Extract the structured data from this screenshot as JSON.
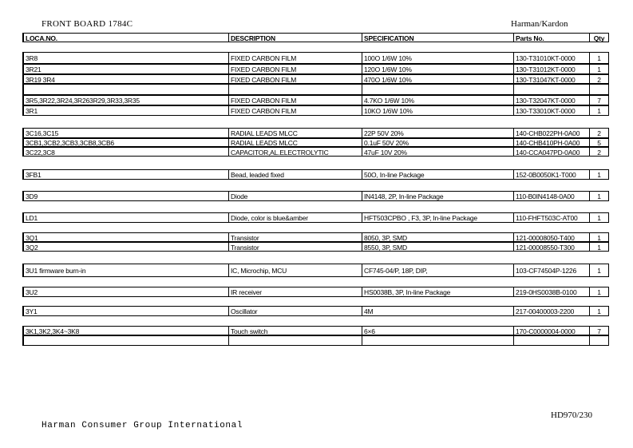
{
  "header": {
    "title": "FRONT BOARD 1784C",
    "brand": "Harman/Kardon"
  },
  "table": {
    "columns": [
      "LOCA.NO.",
      "DESCRIPTION",
      "SPECIFICATION",
      "Parts No.",
      "Qty"
    ],
    "rows": [
      {
        "loc": "3R8",
        "desc": "FIXED CARBON FILM",
        "spec": "100O 1/6W 10%",
        "part": "130-T31010KT-0000",
        "qty": "1"
      },
      {
        "loc": "3R21",
        "desc": "FIXED CARBON FILM",
        "spec": "120O 1/6W 10%",
        "part": "130-T31012KT-0000",
        "qty": "1"
      },
      {
        "loc": "3R19 3R4",
        "desc": "FIXED CARBON FILM",
        "spec": "470O 1/6W 10%",
        "part": "130-T31047KT-0000",
        "qty": "2"
      },
      {
        "loc": "",
        "desc": "",
        "spec": "",
        "part": "",
        "qty": ""
      },
      {
        "loc": "3R5,3R22,3R24,3R263R29,3R33,3R35",
        "desc": "FIXED CARBON FILM",
        "spec": "4.7KO 1/6W 10%",
        "part": "130-T32047KT-0000",
        "qty": "7"
      },
      {
        "loc": "3R1",
        "desc": "FIXED CARBON FILM",
        "spec": "10KO 1/6W 10%",
        "part": "130-T33010KT-0000",
        "qty": "1"
      },
      {
        "loc": "3C16,3C15",
        "desc": "RADIAL LEADS MLCC",
        "spec": "22P 50V 20%",
        "part": "140-CHB022PH-0A00",
        "qty": "2"
      },
      {
        "loc": "3CB1,3CB2,3CB3,3CB8,3CB6",
        "desc": "RADIAL LEADS MLCC",
        "spec": "0.1uF 50V 20%",
        "part": "140-CHB410PH-0A00",
        "qty": "5"
      },
      {
        "loc": "3C22,3C8",
        "desc": "CAPACITOR,AL.ELECTROLYTIC",
        "spec": "47uF 10V 20%",
        "part": "140-CCA047PD-0A00",
        "qty": "2"
      },
      {
        "loc": "3FB1",
        "desc": "Bead, leaded fixed",
        "spec": "50O, In-line Package",
        "part": "152-0B0050K1-T000",
        "qty": "1"
      },
      {
        "loc": "3D9",
        "desc": "Diode",
        "spec": "IN4148, 2P, In-line Package",
        "part": "110-B0IN4148-0A00",
        "qty": "1"
      },
      {
        "loc": "LD1",
        "desc": "Diode, color is blue&amber",
        "spec": "HFT503CPBO , F3, 3P, In-line Package",
        "part": "110-FHFT503C-AT00",
        "qty": "1"
      },
      {
        "loc": "3Q1",
        "desc": "Transistor",
        "spec": "8050, 3P, SMD",
        "part": "121-00008050-T400",
        "qty": "1"
      },
      {
        "loc": "3Q2",
        "desc": "Transistor",
        "spec": "8550, 3P, SMD",
        "part": "121-00008550-T300",
        "qty": "1"
      },
      {
        "loc": "3U1 firmware burn-in",
        "desc": "IC, Microchip, MCU",
        "spec": "CF745-04/P, 18P, DIP,",
        "part": "103-CF74504P-1226",
        "qty": "1"
      },
      {
        "loc": "3U2",
        "desc": "IR receiver",
        "spec": "HS0038B, 3P, In-line Package",
        "part": "219-0HS0038B-0100",
        "qty": "1"
      },
      {
        "loc": "3Y1",
        "desc": "Oscillator",
        "spec": "4M",
        "part": "217-00400003-2200",
        "qty": "1"
      },
      {
        "loc": "3K1,3K2,3K4~3K8",
        "desc": "Touch switch",
        "spec": "6×6",
        "part": "170-C0000004-0000",
        "qty": "7"
      },
      {
        "loc": "",
        "desc": "",
        "spec": "",
        "part": "",
        "qty": ""
      }
    ]
  },
  "footer": {
    "page": "HD970/230",
    "company": "Harman Consumer Group International"
  }
}
